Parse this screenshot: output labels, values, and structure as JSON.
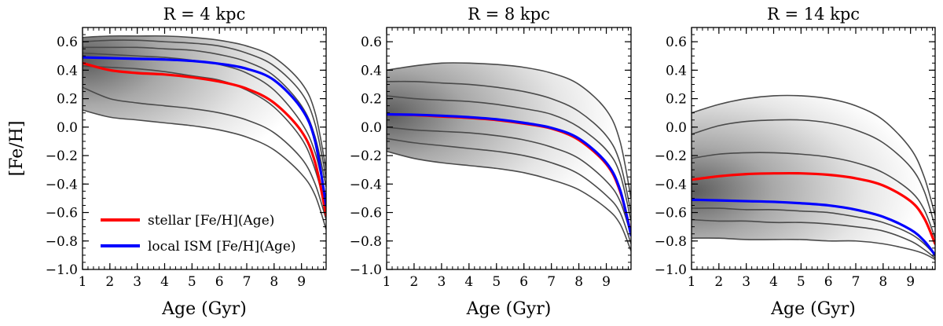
{
  "chart_data": [
    {
      "type": "line",
      "title": "R = 4 kpc",
      "xlabel": "Age (Gyr)",
      "ylabel": "[Fe/H]",
      "xlim": [
        1,
        9.9
      ],
      "ylim": [
        -1.0,
        0.7
      ],
      "xticks": [
        1,
        2,
        3,
        4,
        5,
        6,
        7,
        8,
        9
      ],
      "yticks": [
        -1.0,
        -0.8,
        -0.6,
        -0.4,
        -0.2,
        0.0,
        0.2,
        0.4,
        0.6
      ],
      "grid": false,
      "legend_position": "lower-left",
      "density_peak": {
        "x": 1.0,
        "y": 0.47
      },
      "contours": [
        {
          "x": [
            1,
            2,
            3,
            4,
            5,
            6,
            7,
            8,
            9,
            9.5,
            9.9
          ],
          "y": [
            0.63,
            0.64,
            0.64,
            0.64,
            0.63,
            0.61,
            0.57,
            0.49,
            0.31,
            0.1,
            -0.3
          ]
        },
        {
          "x": [
            1,
            2,
            3,
            4,
            5,
            6,
            7,
            8,
            9,
            9.5,
            9.9
          ],
          "y": [
            0.6,
            0.61,
            0.61,
            0.6,
            0.59,
            0.57,
            0.52,
            0.43,
            0.24,
            0.02,
            -0.36
          ]
        },
        {
          "x": [
            1,
            2,
            3,
            4,
            5,
            6,
            7,
            8,
            9,
            9.5,
            9.9
          ],
          "y": [
            0.56,
            0.56,
            0.56,
            0.55,
            0.54,
            0.51,
            0.46,
            0.36,
            0.15,
            -0.07,
            -0.42
          ]
        },
        {
          "x": [
            1,
            2,
            3,
            4,
            5,
            6,
            7,
            8,
            9,
            9.5,
            9.9
          ],
          "y": [
            0.52,
            0.51,
            0.5,
            0.49,
            0.47,
            0.44,
            0.38,
            0.26,
            0.03,
            -0.18,
            -0.5
          ]
        },
        {
          "x": [
            1,
            2,
            3,
            4,
            5,
            6,
            7,
            8,
            9,
            9.5,
            9.9
          ],
          "y": [
            0.43,
            0.42,
            0.41,
            0.39,
            0.36,
            0.33,
            0.26,
            0.14,
            -0.08,
            -0.3,
            -0.58
          ]
        },
        {
          "x": [
            1,
            2,
            3,
            4,
            5,
            6,
            7,
            8,
            9,
            9.5,
            9.9
          ],
          "y": [
            0.28,
            0.2,
            0.17,
            0.15,
            0.13,
            0.1,
            0.05,
            -0.04,
            -0.22,
            -0.4,
            -0.65
          ]
        },
        {
          "x": [
            1,
            2,
            3,
            4,
            5,
            6,
            7,
            8,
            9,
            9.5,
            9.9
          ],
          "y": [
            0.12,
            0.07,
            0.05,
            0.03,
            0.01,
            -0.02,
            -0.07,
            -0.16,
            -0.33,
            -0.48,
            -0.72
          ]
        }
      ],
      "series": [
        {
          "name": "stellar [Fe/H](Age)",
          "color": "#ff0000",
          "x": [
            1,
            2,
            3,
            4,
            5,
            6,
            7,
            8,
            9,
            9.5,
            9.9
          ],
          "y": [
            0.45,
            0.4,
            0.38,
            0.37,
            0.35,
            0.32,
            0.27,
            0.17,
            -0.03,
            -0.25,
            -0.62
          ]
        },
        {
          "name": "local ISM [Fe/H](Age)",
          "color": "#0000ff",
          "x": [
            1,
            2,
            3,
            4,
            5,
            6,
            7,
            8,
            9,
            9.5,
            9.9
          ],
          "y": [
            0.49,
            0.485,
            0.48,
            0.475,
            0.465,
            0.445,
            0.41,
            0.33,
            0.13,
            -0.1,
            -0.55
          ]
        }
      ]
    },
    {
      "type": "line",
      "title": "R = 8 kpc",
      "xlabel": "Age (Gyr)",
      "ylabel": "",
      "xlim": [
        1,
        9.9
      ],
      "ylim": [
        -1.0,
        0.7
      ],
      "xticks": [
        1,
        2,
        3,
        4,
        5,
        6,
        7,
        8,
        9
      ],
      "yticks": [
        -1.0,
        -0.8,
        -0.6,
        -0.4,
        -0.2,
        0.0,
        0.2,
        0.4,
        0.6
      ],
      "grid": false,
      "density_peak": {
        "x": 1.0,
        "y": 0.09
      },
      "contours": [
        {
          "x": [
            1,
            2,
            3,
            4,
            5,
            6,
            7,
            8,
            9,
            9.5,
            9.9
          ],
          "y": [
            0.4,
            0.43,
            0.45,
            0.45,
            0.44,
            0.42,
            0.38,
            0.3,
            0.12,
            -0.1,
            -0.5
          ]
        },
        {
          "x": [
            1,
            2,
            3,
            4,
            5,
            6,
            7,
            8,
            9,
            9.5,
            9.9
          ],
          "y": [
            0.32,
            0.32,
            0.31,
            0.3,
            0.28,
            0.25,
            0.2,
            0.11,
            -0.06,
            -0.25,
            -0.6
          ]
        },
        {
          "x": [
            1,
            2,
            3,
            4,
            5,
            6,
            7,
            8,
            9,
            9.5,
            9.9
          ],
          "y": [
            0.22,
            0.2,
            0.19,
            0.18,
            0.16,
            0.13,
            0.09,
            0.0,
            -0.16,
            -0.33,
            -0.66
          ]
        },
        {
          "x": [
            1,
            2,
            3,
            4,
            5,
            6,
            7,
            8,
            9,
            9.5,
            9.9
          ],
          "y": [
            0.0,
            -0.02,
            -0.03,
            -0.04,
            -0.06,
            -0.09,
            -0.14,
            -0.22,
            -0.38,
            -0.52,
            -0.76
          ]
        },
        {
          "x": [
            1,
            2,
            3,
            4,
            5,
            6,
            7,
            8,
            9,
            9.5,
            9.9
          ],
          "y": [
            -0.08,
            -0.11,
            -0.13,
            -0.15,
            -0.17,
            -0.2,
            -0.25,
            -0.33,
            -0.48,
            -0.6,
            -0.82
          ]
        },
        {
          "x": [
            1,
            2,
            3,
            4,
            5,
            6,
            7,
            8,
            9,
            9.5,
            9.9
          ],
          "y": [
            -0.17,
            -0.22,
            -0.25,
            -0.27,
            -0.29,
            -0.32,
            -0.37,
            -0.44,
            -0.57,
            -0.68,
            -0.87
          ]
        }
      ],
      "series": [
        {
          "name": "stellar [Fe/H](Age)",
          "color": "#ff0000",
          "x": [
            1,
            2,
            3,
            4,
            5,
            6,
            7,
            8,
            9,
            9.5,
            9.9
          ],
          "y": [
            0.09,
            0.085,
            0.075,
            0.065,
            0.05,
            0.025,
            -0.01,
            -0.09,
            -0.26,
            -0.45,
            -0.75
          ]
        },
        {
          "name": "local ISM [Fe/H](Age)",
          "color": "#0000ff",
          "x": [
            1,
            2,
            3,
            4,
            5,
            6,
            7,
            8,
            9,
            9.5,
            9.9
          ],
          "y": [
            0.09,
            0.087,
            0.08,
            0.07,
            0.055,
            0.03,
            -0.005,
            -0.08,
            -0.25,
            -0.44,
            -0.76
          ]
        }
      ]
    },
    {
      "type": "line",
      "title": "R = 14 kpc",
      "xlabel": "Age (Gyr)",
      "ylabel": "",
      "xlim": [
        1,
        9.9
      ],
      "ylim": [
        -1.0,
        0.7
      ],
      "xticks": [
        1,
        2,
        3,
        4,
        5,
        6,
        7,
        8,
        9
      ],
      "yticks": [
        -1.0,
        -0.8,
        -0.6,
        -0.4,
        -0.2,
        0.0,
        0.2,
        0.4,
        0.6
      ],
      "grid": false,
      "density_peak": {
        "x": 1.0,
        "y": -0.45
      },
      "contours": [
        {
          "x": [
            1,
            2,
            3,
            4,
            5,
            6,
            7,
            8,
            9,
            9.5,
            9.9
          ],
          "y": [
            0.1,
            0.16,
            0.2,
            0.22,
            0.22,
            0.2,
            0.15,
            0.05,
            -0.15,
            -0.35,
            -0.62
          ]
        },
        {
          "x": [
            1,
            2,
            3,
            4,
            5,
            6,
            7,
            8,
            9,
            9.5,
            9.9
          ],
          "y": [
            -0.05,
            0.01,
            0.04,
            0.05,
            0.05,
            0.03,
            -0.02,
            -0.11,
            -0.28,
            -0.45,
            -0.7
          ]
        },
        {
          "x": [
            1,
            2,
            3,
            4,
            5,
            6,
            7,
            8,
            9,
            9.5,
            9.9
          ],
          "y": [
            -0.22,
            -0.19,
            -0.18,
            -0.18,
            -0.19,
            -0.21,
            -0.25,
            -0.32,
            -0.45,
            -0.58,
            -0.78
          ]
        },
        {
          "x": [
            1,
            2,
            3,
            4,
            5,
            6,
            7,
            8,
            9,
            9.5,
            9.9
          ],
          "y": [
            -0.57,
            -0.57,
            -0.58,
            -0.58,
            -0.59,
            -0.6,
            -0.63,
            -0.67,
            -0.75,
            -0.82,
            -0.9
          ]
        },
        {
          "x": [
            1,
            2,
            3,
            4,
            5,
            6,
            7,
            8,
            9,
            9.5,
            9.9
          ],
          "y": [
            -0.65,
            -0.66,
            -0.66,
            -0.67,
            -0.67,
            -0.68,
            -0.7,
            -0.73,
            -0.8,
            -0.86,
            -0.92
          ]
        },
        {
          "x": [
            1,
            2,
            3,
            4,
            5,
            6,
            7,
            8,
            9,
            9.5,
            9.9
          ],
          "y": [
            -0.78,
            -0.78,
            -0.79,
            -0.79,
            -0.79,
            -0.8,
            -0.8,
            -0.82,
            -0.86,
            -0.89,
            -0.93
          ]
        }
      ],
      "series": [
        {
          "name": "stellar [Fe/H](Age)",
          "color": "#ff0000",
          "x": [
            1,
            2,
            3,
            4,
            5,
            6,
            7,
            8,
            9,
            9.5,
            9.9
          ],
          "y": [
            -0.37,
            -0.345,
            -0.33,
            -0.325,
            -0.325,
            -0.335,
            -0.36,
            -0.41,
            -0.52,
            -0.64,
            -0.82
          ]
        },
        {
          "name": "local ISM [Fe/H](Age)",
          "color": "#0000ff",
          "x": [
            1,
            2,
            3,
            4,
            5,
            6,
            7,
            8,
            9,
            9.5,
            9.9
          ],
          "y": [
            -0.51,
            -0.515,
            -0.52,
            -0.525,
            -0.535,
            -0.55,
            -0.58,
            -0.63,
            -0.72,
            -0.8,
            -0.9
          ]
        }
      ]
    }
  ]
}
